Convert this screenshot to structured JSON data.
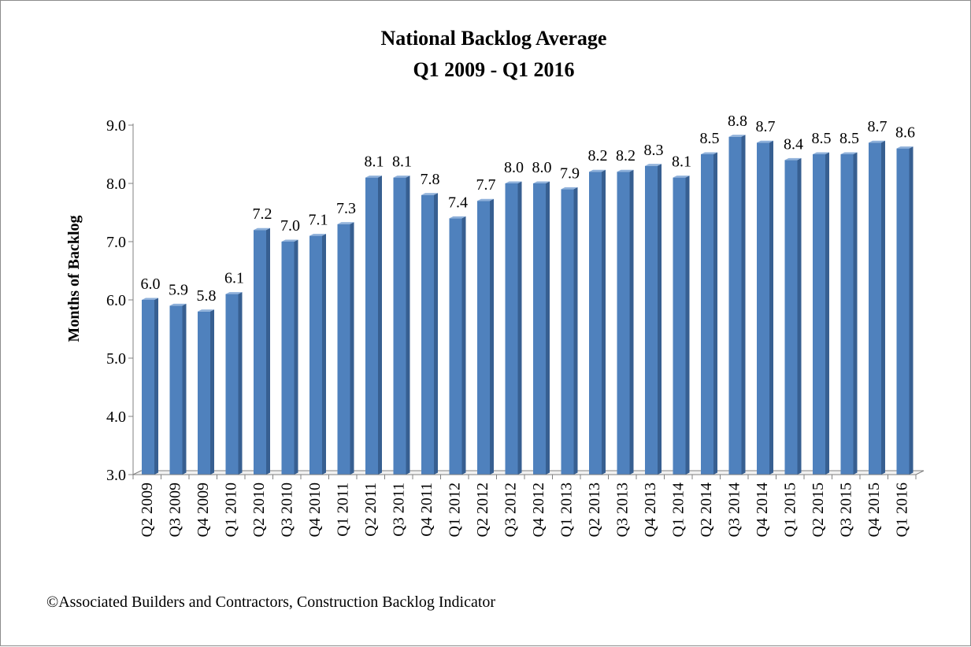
{
  "chart_data": {
    "type": "bar",
    "title": [
      "National Backlog Average",
      "Q1 2009 - Q1 2016"
    ],
    "ylabel": "Months of Backlog",
    "xlabel": "",
    "ylim": [
      3.0,
      9.0
    ],
    "yticks": [
      "3.0",
      "4.0",
      "5.0",
      "6.0",
      "7.0",
      "8.0",
      "9.0"
    ],
    "grid": false,
    "legend": "none",
    "bar_color": "#4f81bd",
    "categories": [
      "Q2 2009",
      "Q3 2009",
      "Q4 2009",
      "Q1 2010",
      "Q2 2010",
      "Q3 2010",
      "Q4 2010",
      "Q1 2011",
      "Q2 2011",
      "Q3 2011",
      "Q4 2011",
      "Q1 2012",
      "Q2 2012",
      "Q3 2012",
      "Q4 2012",
      "Q1 2013",
      "Q2 2013",
      "Q3 2013",
      "Q4 2013",
      "Q1 2014",
      "Q2 2014",
      "Q3 2014",
      "Q4 2014",
      "Q1 2015",
      "Q2 2015",
      "Q3 2015",
      "Q4 2015",
      "Q1 2016"
    ],
    "values": [
      6.0,
      5.9,
      5.8,
      6.1,
      7.2,
      7.0,
      7.1,
      7.3,
      8.1,
      8.1,
      7.8,
      7.4,
      7.7,
      8.0,
      8.0,
      7.9,
      8.2,
      8.2,
      8.3,
      8.1,
      8.5,
      8.8,
      8.7,
      8.4,
      8.5,
      8.5,
      8.7,
      8.6
    ],
    "data_labels": [
      "6.0",
      "5.9",
      "5.8",
      "6.1",
      "7.2",
      "7.0",
      "7.1",
      "7.3",
      "8.1",
      "8.1",
      "7.8",
      "7.4",
      "7.7",
      "8.0",
      "8.0",
      "7.9",
      "8.2",
      "8.2",
      "8.3",
      "8.1",
      "8.5",
      "8.8",
      "8.7",
      "8.4",
      "8.5",
      "8.5",
      "8.7",
      "8.6"
    ]
  },
  "footnote": "©Associated Builders and Contractors, Construction Backlog Indicator"
}
